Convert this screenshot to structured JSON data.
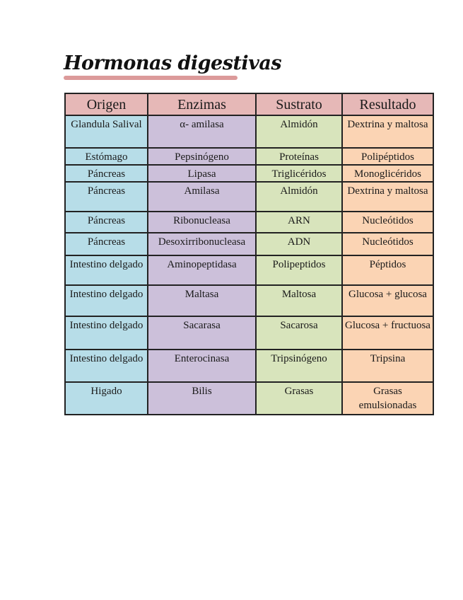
{
  "title": "Hormonas digestivas",
  "colors": {
    "header": "#e6b8b7",
    "origen": "#b7dde8",
    "enzimas": "#ccc0da",
    "sustrato": "#d8e4bc",
    "resultado": "#fbd4b4",
    "title_underline": "#dc9a9a"
  },
  "table": {
    "headers": [
      "Origen",
      "Enzimas",
      "Sustrato",
      "Resultado"
    ],
    "rows": [
      [
        "Glandula Salival",
        "α- amilasa",
        "Almidón",
        "Dextrina y maltosa"
      ],
      [
        "Estómago",
        "Pepsinógeno",
        "Proteínas",
        "Polipéptidos"
      ],
      [
        "Páncreas",
        "Lipasa",
        "Triglicéridos",
        "Monoglicéridos"
      ],
      [
        "Páncreas",
        "Amilasa",
        "Almidón",
        "Dextrina y maltosa"
      ],
      [
        "Páncreas",
        "Ribonucleasa",
        "ARN",
        "Nucleótidos"
      ],
      [
        "Páncreas",
        "Desoxirribonucleasa",
        "ADN",
        "Nucleótidos"
      ],
      [
        "Intestino delgado",
        "Aminopeptidasa",
        "Polipeptidos",
        "Péptidos"
      ],
      [
        "Intestino delgado",
        "Maltasa",
        "Maltosa",
        "Glucosa + glucosa"
      ],
      [
        "Intestino delgado",
        "Sacarasa",
        "Sacarosa",
        "Glucosa + fructuosa"
      ],
      [
        "Intestino delgado",
        "Enterocinasa",
        "Tripsinógeno",
        "Tripsina"
      ],
      [
        "Higado",
        "Bilis",
        "Grasas",
        "Grasas emulsionadas"
      ]
    ]
  }
}
